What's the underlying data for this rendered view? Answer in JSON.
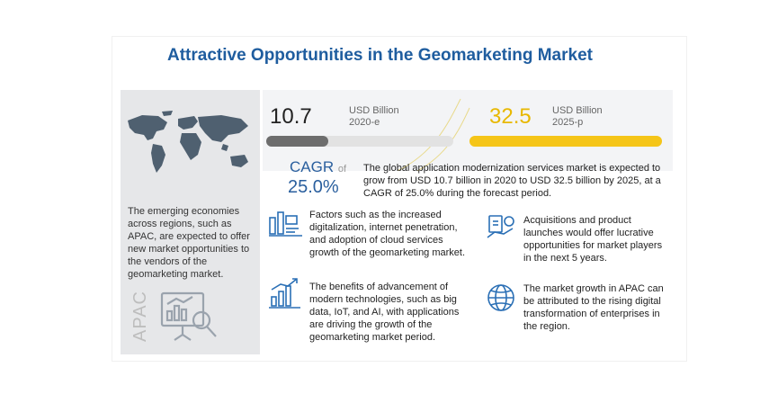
{
  "title": "Attractive Opportunities in the Geomarketing Market",
  "left_panel": {
    "text": "The emerging economies across regions, such as APAC, are expected to offer new market opportunities to the vendors of the geomarketing market.",
    "region_label": "APAC"
  },
  "stats": {
    "start": {
      "value": "10.7",
      "unit": "USD Billion",
      "year": "2020-e",
      "fill_fraction": 0.33
    },
    "end": {
      "value": "32.5",
      "unit": "USD Billion",
      "year": "2025-p",
      "fill_fraction": 1.0
    }
  },
  "cagr": {
    "label": "CAGR",
    "of": "of",
    "value": "25.0%"
  },
  "summary": "The global application modernization services market is expected to grow from USD 10.7 billion in 2020 to USD 32.5 billion by 2025, at a CAGR of 25.0% during the forecast period.",
  "bullets": [
    {
      "icon": "digitalization-icon",
      "text": "Factors such as the increased digitalization, internet penetration, and adoption of cloud services growth of the geomarketing market."
    },
    {
      "icon": "acquisition-icon",
      "text": "Acquisitions and product launches would offer lucrative opportunities for market players in the next 5 years."
    },
    {
      "icon": "technology-growth-icon",
      "text": "The benefits of advancement of modern technologies, such as big data, IoT, and AI, with applications are driving the growth of the geomarketing market period."
    },
    {
      "icon": "globe-icon",
      "text": "The market growth in APAC can be attributed to the rising digital transformation of enterprises in the region."
    }
  ],
  "colors": {
    "title": "#1f5d9f",
    "cagr": "#2a5f9e",
    "bar_start": "#6d6d6d",
    "bar_end": "#f5c518",
    "value_end": "#e8b800",
    "icon": "#2a6fb5",
    "panel": "#e6e7e9"
  }
}
